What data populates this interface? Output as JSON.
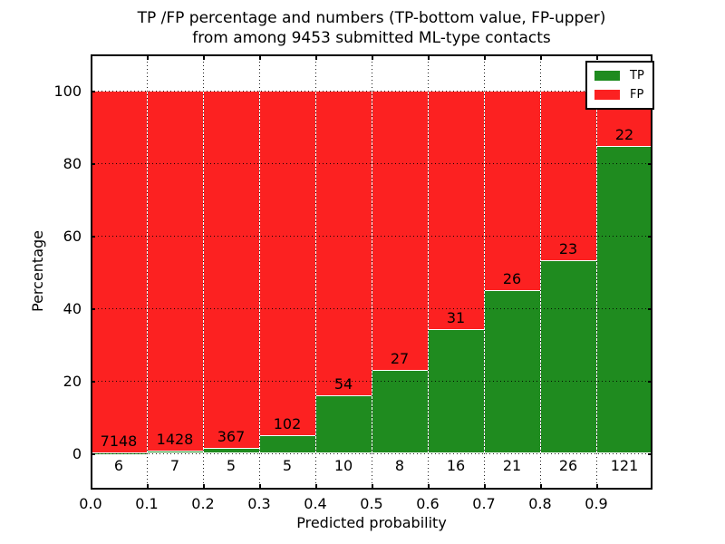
{
  "chart_data": {
    "type": "bar",
    "stacked": true,
    "title_line1": "TP /FP percentage and numbers (TP-bottom value, FP-upper)",
    "title_line2": "from among 9453 submitted ML-type contacts",
    "xlabel": "Predicted probability",
    "ylabel": "Percentage",
    "xlim": [
      0.0,
      1.0
    ],
    "ylim": [
      -10,
      110
    ],
    "x_tick_labels": [
      "0.0",
      "0.1",
      "0.2",
      "0.3",
      "0.4",
      "0.5",
      "0.6",
      "0.7",
      "0.8",
      "0.9"
    ],
    "y_tick_values": [
      0,
      20,
      40,
      60,
      80,
      100
    ],
    "grid": "dotted",
    "bar_width": 0.1,
    "total_submitted": 9453,
    "categories": [
      "0.0-0.1",
      "0.1-0.2",
      "0.2-0.3",
      "0.3-0.4",
      "0.4-0.5",
      "0.5-0.6",
      "0.6-0.7",
      "0.7-0.8",
      "0.8-0.9",
      "0.9-1.0"
    ],
    "series": [
      {
        "name": "TP",
        "color": "#1f8b1f",
        "counts": [
          6,
          7,
          5,
          5,
          10,
          8,
          16,
          21,
          26,
          121
        ],
        "pct": [
          0.08,
          0.49,
          1.34,
          4.67,
          15.63,
          22.86,
          34.04,
          44.68,
          53.06,
          84.62
        ]
      },
      {
        "name": "FP",
        "color": "#fc2121",
        "counts": [
          7148,
          1428,
          367,
          102,
          54,
          27,
          31,
          26,
          23,
          22
        ],
        "pct": [
          99.92,
          99.51,
          98.66,
          95.33,
          84.37,
          77.14,
          65.96,
          55.32,
          46.94,
          15.38
        ]
      }
    ],
    "legend": {
      "position": "upper right",
      "entries": [
        {
          "label": "TP",
          "color": "#1f8b1f"
        },
        {
          "label": "FP",
          "color": "#fc2121"
        }
      ]
    }
  },
  "colors": {
    "tp_green": "#1f8b1f",
    "fp_red": "#fc2121",
    "grid": "#000000",
    "background": "#ffffff"
  }
}
